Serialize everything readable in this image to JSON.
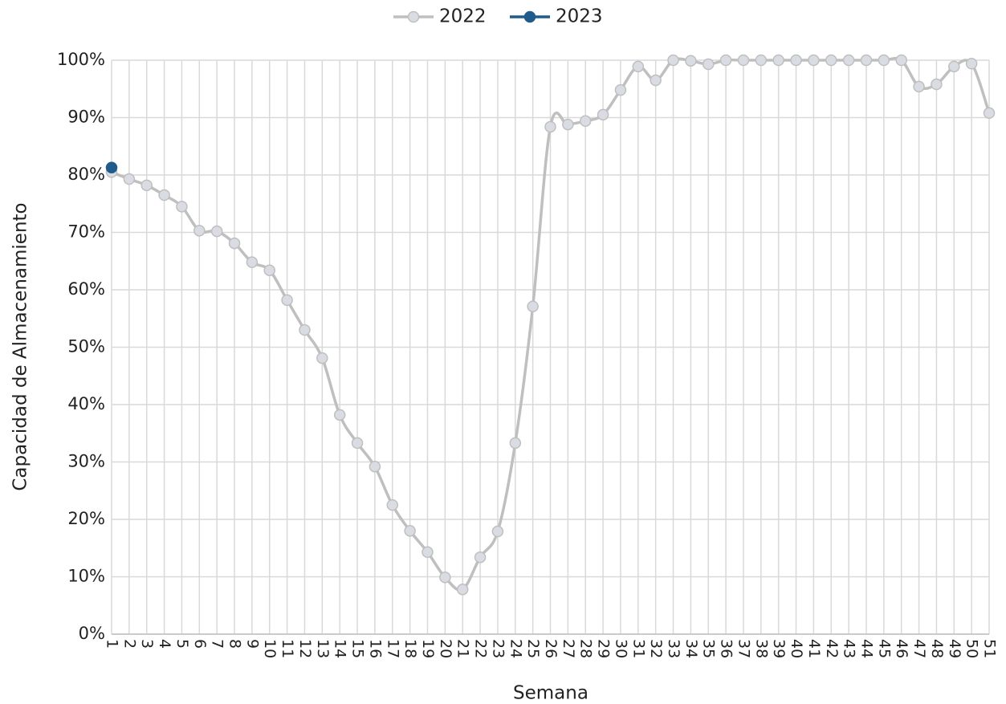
{
  "chart_data": {
    "type": "line",
    "x_label": "Semana",
    "y_label": "Capacidad de Almacenamiento",
    "categories": [
      "1",
      "2",
      "3",
      "4",
      "5",
      "6",
      "7",
      "8",
      "9",
      "10",
      "11",
      "12",
      "13",
      "14",
      "15",
      "16",
      "17",
      "18",
      "19",
      "20",
      "21",
      "22",
      "23",
      "24",
      "25",
      "26",
      "27",
      "28",
      "29",
      "30",
      "31",
      "32",
      "33",
      "34",
      "35",
      "36",
      "37",
      "38",
      "39",
      "40",
      "41",
      "42",
      "43",
      "44",
      "45",
      "46",
      "47",
      "48",
      "49",
      "50",
      "51"
    ],
    "series": [
      {
        "name": "2022",
        "color": "#bfbfbf",
        "marker_fill": "#d9dde3",
        "values": [
          80.5,
          79.3,
          78.2,
          76.5,
          74.5,
          70.3,
          70.2,
          68.1,
          64.8,
          63.4,
          58.2,
          53.0,
          48.1,
          38.2,
          33.3,
          29.2,
          22.5,
          18.0,
          14.3,
          9.9,
          7.8,
          13.4,
          17.9,
          33.3,
          57.1,
          88.4,
          88.8,
          89.4,
          90.5,
          94.8,
          98.9,
          96.5,
          100,
          99.9,
          99.3,
          100,
          100,
          100,
          100,
          100,
          100,
          100,
          100,
          100,
          100,
          100,
          95.4,
          95.8,
          98.9,
          99.4,
          90.8
        ]
      },
      {
        "name": "2023",
        "color": "#1f5c8b",
        "marker_fill": "#1f5c8b",
        "values": [
          81.3,
          null,
          null,
          null,
          null,
          null,
          null,
          null,
          null,
          null,
          null,
          null,
          null,
          null,
          null,
          null,
          null,
          null,
          null,
          null,
          null,
          null,
          null,
          null,
          null,
          null,
          null,
          null,
          null,
          null,
          null,
          null,
          null,
          null,
          null,
          null,
          null,
          null,
          null,
          null,
          null,
          null,
          null,
          null,
          null,
          null,
          null,
          null,
          null,
          null,
          null
        ]
      }
    ],
    "ylim": [
      0,
      100
    ],
    "yticks": [
      {
        "value": 0,
        "label": "0%"
      },
      {
        "value": 10,
        "label": "10%"
      },
      {
        "value": 20,
        "label": "20%"
      },
      {
        "value": 30,
        "label": "30%"
      },
      {
        "value": 40,
        "label": "40%"
      },
      {
        "value": 50,
        "label": "50%"
      },
      {
        "value": 60,
        "label": "60%"
      },
      {
        "value": 70,
        "label": "70%"
      },
      {
        "value": 80,
        "label": "80%"
      },
      {
        "value": 90,
        "label": "90%"
      },
      {
        "value": 100,
        "label": "100%"
      }
    ],
    "grid": true,
    "legend": "top"
  }
}
